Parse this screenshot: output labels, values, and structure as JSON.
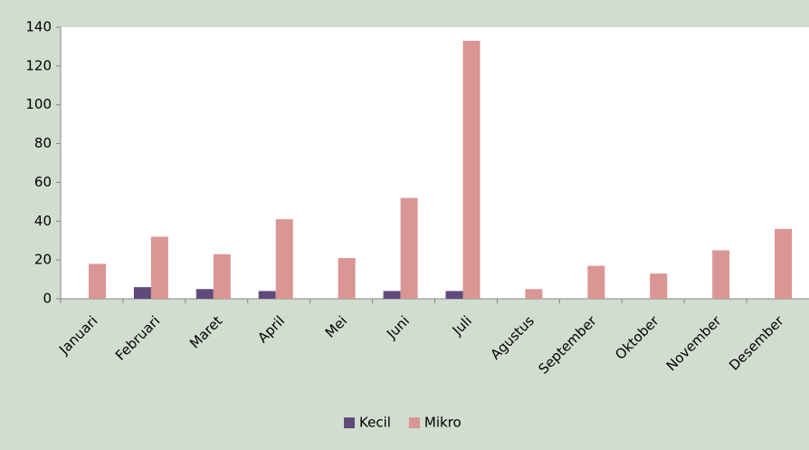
{
  "chart_data": {
    "type": "bar",
    "categories": [
      "Januari",
      "Februari",
      "Maret",
      "April",
      "Mei",
      "Juni",
      "Juli",
      "Agustus",
      "September",
      "Oktober",
      "November",
      "Desember"
    ],
    "series": [
      {
        "name": "Kecil",
        "color": "#604a7b",
        "values": [
          0,
          6,
          5,
          4,
          0,
          4,
          4,
          0,
          0,
          0,
          0,
          0
        ]
      },
      {
        "name": "Mikro",
        "color": "#d99694",
        "values": [
          18,
          32,
          23,
          41,
          21,
          52,
          133,
          5,
          17,
          13,
          25,
          36
        ]
      }
    ],
    "ylim": [
      0,
      140
    ],
    "yticks": [
      0,
      20,
      40,
      60,
      80,
      100,
      120,
      140
    ],
    "grid": false,
    "legend": "bottom"
  }
}
